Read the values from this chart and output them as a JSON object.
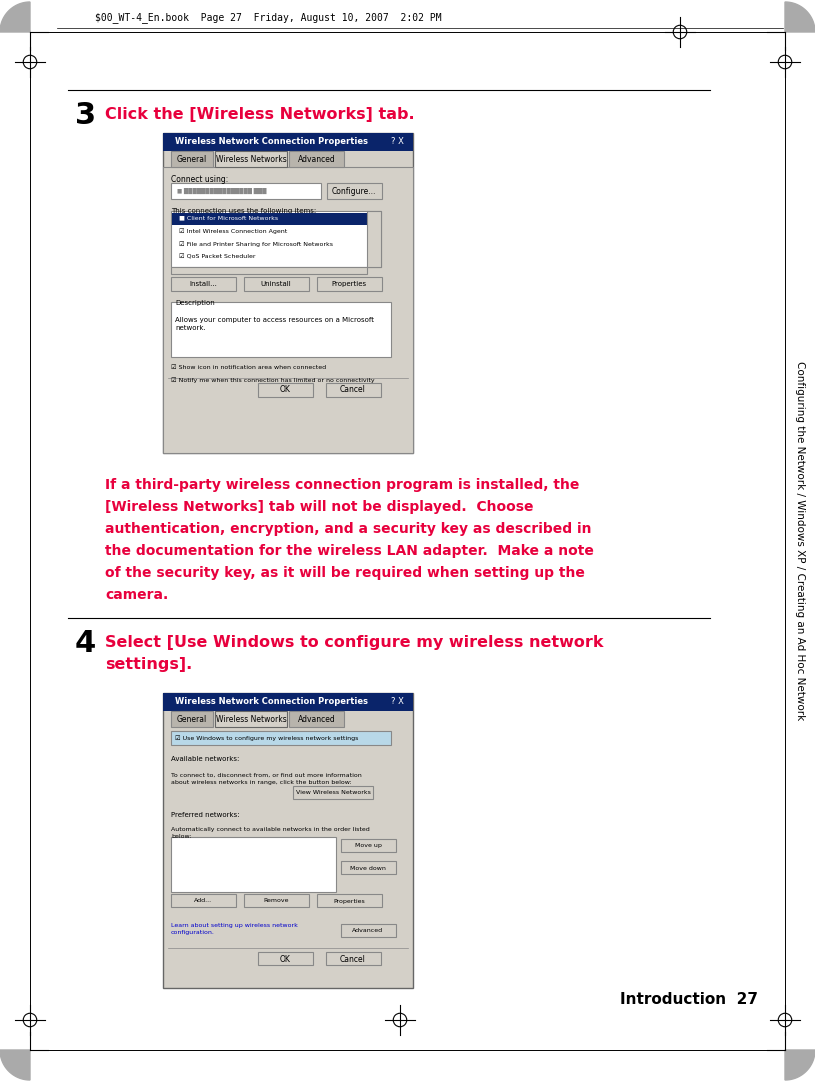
{
  "bg_color": "#ffffff",
  "page_header_text": "$00_WT-4_En.book  Page 27  Friday, August 10, 2007  2:02 PM",
  "sidebar_text": "Configuring the Network / Windows XP / Creating an Ad Hoc Network",
  "footer_text": "Introduction  27",
  "step3_number": "3",
  "step3_text": "Click the [Wireless Networks] tab.",
  "step3_note_lines": [
    "If a third-party wireless connection program is installed, the",
    "[Wireless Networks] tab will not be displayed.  Choose",
    "authentication, encryption, and a security key as described in",
    "the documentation for the wireless LAN adapter.  Make a note",
    "of the security key, as it will be required when setting up the",
    "camera."
  ],
  "step4_number": "4",
  "step4_text_lines": [
    "Select [Use Windows to configure my wireless network",
    "settings]."
  ],
  "accent_color": "#e8003d",
  "text_color": "#000000",
  "dialog1_title": "Wireless Network Connection Properties",
  "dialog1_tabs": [
    "General",
    "Wireless Networks",
    "Advanced"
  ],
  "dialog1_active_tab": 1,
  "dialog2_title": "Wireless Network Connection Properties",
  "dialog2_tabs": [
    "General",
    "Wireless Networks",
    "Advanced"
  ],
  "dialog2_active_tab": 1
}
